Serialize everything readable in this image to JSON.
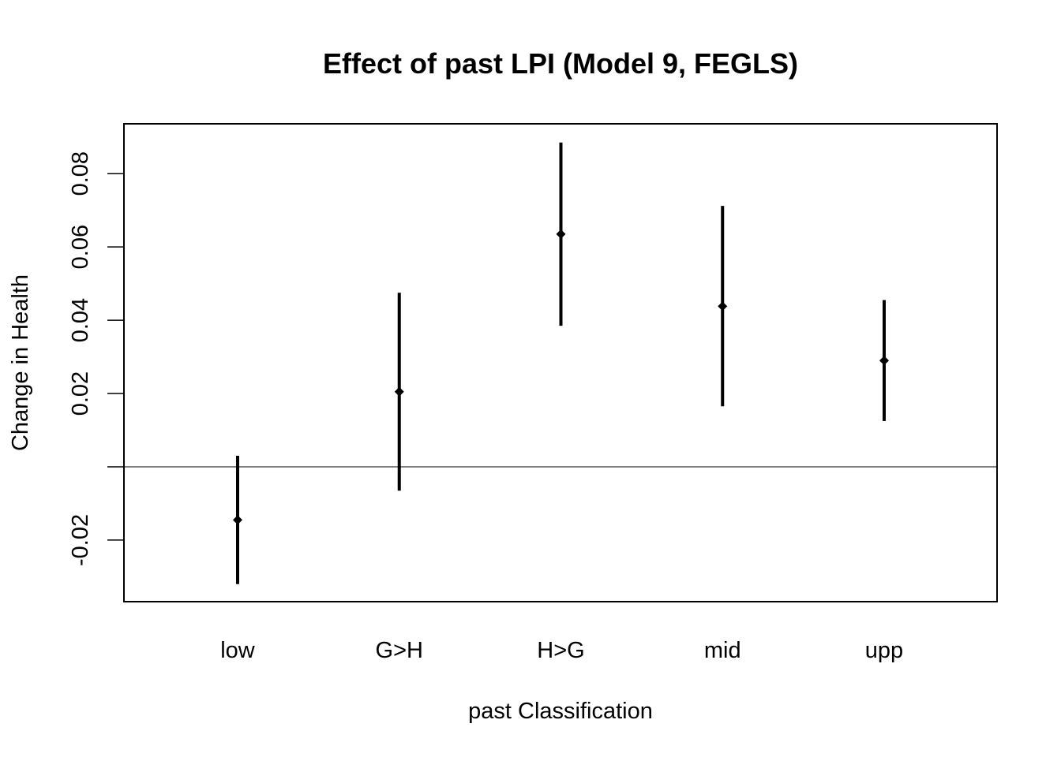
{
  "chart_data": {
    "type": "scatter",
    "title": "Effect of past LPI (Model 9, FEGLS)",
    "xlabel": "past Classification",
    "ylabel": "Change in Health",
    "categories": [
      "low",
      "G>H",
      "H>G",
      "mid",
      "upp"
    ],
    "series": [
      {
        "estimate": [
          -0.0145,
          0.0205,
          0.0635,
          0.0438,
          0.029
        ],
        "lower": [
          -0.032,
          -0.0065,
          0.0385,
          0.0165,
          0.0125
        ],
        "upper": [
          0.003,
          0.0475,
          0.0885,
          0.0712,
          0.0455
        ]
      }
    ],
    "yticks": [
      -0.02,
      0.0,
      0.02,
      0.04,
      0.06,
      0.08
    ],
    "ytick_labels": [
      "-0.02",
      "",
      "0.02",
      "0.04",
      "0.06",
      "0.08"
    ],
    "ylim": [
      -0.0368,
      0.0936
    ],
    "reference_line_y": 0,
    "grid": false,
    "legend": "none",
    "colors": {
      "points": "#000000",
      "error_bars": "#000000",
      "reference_line": "#000000",
      "frame": "#000000"
    }
  }
}
